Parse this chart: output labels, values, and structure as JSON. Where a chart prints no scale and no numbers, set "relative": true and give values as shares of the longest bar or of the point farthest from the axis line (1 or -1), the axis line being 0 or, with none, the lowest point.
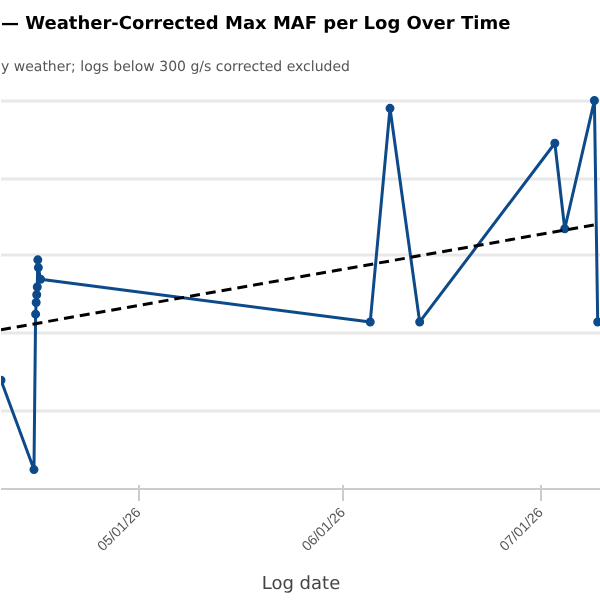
{
  "chart_data": {
    "type": "line",
    "title": "— Weather-Corrected Max MAF per Log Over Time",
    "subtitle": "y weather; logs below 300 g/s corrected excluded",
    "xlabel": "Log date",
    "relative": true,
    "grid": "y",
    "marker": "circle",
    "line_style": "solid",
    "xlim": [
      "2026-04-10",
      "2026-07-10"
    ],
    "xticks": [
      {
        "value": "2026-05-01",
        "label": "05/01/26"
      },
      {
        "value": "2026-06-01",
        "label": "06/01/26"
      },
      {
        "value": "2026-07-01",
        "label": "07/01/26"
      }
    ],
    "series": [
      {
        "color": "#0d4a8a",
        "x": [
          "2026-04-10",
          "2026-04-15T00:00",
          "2026-04-15T06:00",
          "2026-04-15T08:00",
          "2026-04-15T10:00",
          "2026-04-15T12:00",
          "2026-04-15T14:00",
          "2026-04-15T16:00",
          "2026-04-16",
          "2026-06-05",
          "2026-06-08",
          "2026-06-12T12:00",
          "2026-07-03",
          "2026-07-04T12:00",
          "2026-07-09",
          "2026-07-09T12:00"
        ],
        "values": [
          0.28,
          0.05,
          0.45,
          0.48,
          0.5,
          0.52,
          0.59,
          0.57,
          0.54,
          0.43,
          0.98,
          0.43,
          0.89,
          0.67,
          1.0,
          0.43
        ]
      },
      {
        "type": "line",
        "color": "#000000",
        "line_style": "dashed",
        "marker": "none",
        "x": [
          "2026-04-10",
          "2026-07-09"
        ],
        "values": [
          0.41,
          0.68
        ]
      }
    ]
  }
}
